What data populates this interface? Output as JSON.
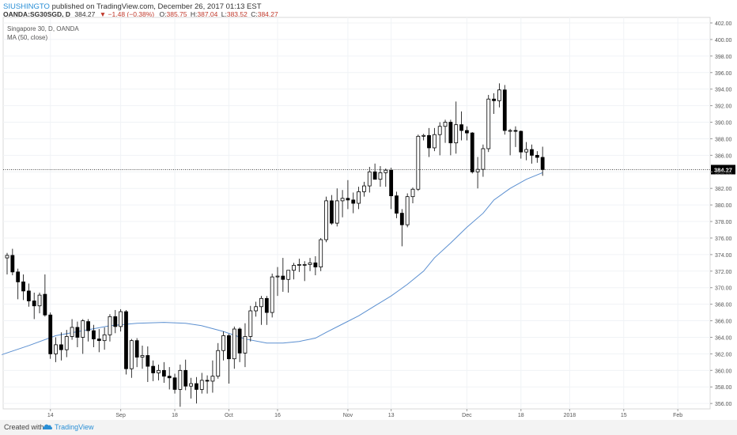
{
  "header": {
    "author": "SIUSHINGTO",
    "published_text": "published on TradingView.com, December 26, 2017 01:13 EST",
    "symbol": "OANDA:SG30SGD, D",
    "last": "384.27",
    "change": "▼ −1.48 (−0.38%)",
    "o_label": "O:",
    "o_value": "385.75",
    "h_label": "H:",
    "h_value": "387.04",
    "l_label": "L:",
    "l_value": "383.52",
    "c_label": "C:",
    "c_value": "384.27"
  },
  "legend": {
    "title": "Singapore 30, D, OANDA",
    "indicator": "MA (50, close)"
  },
  "footer": {
    "created_with": "Created with",
    "brand": "TradingView"
  },
  "colors": {
    "ma_line": "#5b8fd0",
    "price_line": "#333333",
    "candle_up_fill": "#ffffff",
    "candle_down_fill": "#000000",
    "candle_stroke": "#000000",
    "grid": "#f0f3f6",
    "price_label_bg": "#000000"
  },
  "chart_data": {
    "type": "candlestick",
    "ylim": [
      355,
      403
    ],
    "y_ticks": [
      356.0,
      358.0,
      360.0,
      362.0,
      364.0,
      366.0,
      368.0,
      370.0,
      372.0,
      374.0,
      376.0,
      378.0,
      380.0,
      382.0,
      384.0,
      386.0,
      388.0,
      390.0,
      392.0,
      394.0,
      396.0,
      398.0,
      400.0,
      402.0
    ],
    "x_ticks": [
      {
        "label": "14",
        "index": 8
      },
      {
        "label": "Sep",
        "index": 21
      },
      {
        "label": "18",
        "index": 31
      },
      {
        "label": "Oct",
        "index": 41
      },
      {
        "label": "16",
        "index": 50
      },
      {
        "label": "Nov",
        "index": 63
      },
      {
        "label": "13",
        "index": 71
      },
      {
        "label": "Dec",
        "index": 85
      },
      {
        "label": "18",
        "index": 95
      },
      {
        "label": "2018",
        "index": 104
      },
      {
        "label": "15",
        "index": 114
      },
      {
        "label": "Feb",
        "index": 124
      }
    ],
    "last_price": 384.27,
    "last_price_label": "384.27",
    "candles": [
      {
        "o": 373.6,
        "h": 374.2,
        "l": 371.6,
        "c": 373.9
      },
      {
        "o": 373.9,
        "h": 374.7,
        "l": 371.5,
        "c": 371.9
      },
      {
        "o": 371.9,
        "h": 372.3,
        "l": 368.6,
        "c": 370.7
      },
      {
        "o": 370.7,
        "h": 371.6,
        "l": 368.5,
        "c": 369.6
      },
      {
        "o": 369.6,
        "h": 370.5,
        "l": 367.7,
        "c": 368.4
      },
      {
        "o": 368.4,
        "h": 369.4,
        "l": 366.2,
        "c": 367.8
      },
      {
        "o": 367.8,
        "h": 369.4,
        "l": 366.9,
        "c": 369.1
      },
      {
        "o": 369.2,
        "h": 371.6,
        "l": 366.5,
        "c": 366.7
      },
      {
        "o": 366.7,
        "h": 367.0,
        "l": 361.4,
        "c": 362.0
      },
      {
        "o": 362.0,
        "h": 364.0,
        "l": 361.0,
        "c": 363.1
      },
      {
        "o": 363.1,
        "h": 364.6,
        "l": 361.2,
        "c": 362.5
      },
      {
        "o": 362.5,
        "h": 364.9,
        "l": 361.6,
        "c": 364.1
      },
      {
        "o": 364.1,
        "h": 366.2,
        "l": 363.7,
        "c": 365.2
      },
      {
        "o": 365.2,
        "h": 365.9,
        "l": 362.8,
        "c": 364.0
      },
      {
        "o": 364.0,
        "h": 366.2,
        "l": 362.0,
        "c": 366.0
      },
      {
        "o": 365.9,
        "h": 366.2,
        "l": 363.5,
        "c": 364.8
      },
      {
        "o": 364.8,
        "h": 365.5,
        "l": 362.8,
        "c": 363.8
      },
      {
        "o": 363.8,
        "h": 365.0,
        "l": 362.2,
        "c": 363.6
      },
      {
        "o": 363.6,
        "h": 365.2,
        "l": 362.5,
        "c": 364.3
      },
      {
        "o": 364.3,
        "h": 366.8,
        "l": 363.5,
        "c": 366.5
      },
      {
        "o": 366.5,
        "h": 367.3,
        "l": 364.5,
        "c": 365.3
      },
      {
        "o": 365.3,
        "h": 367.4,
        "l": 364.7,
        "c": 367.1
      },
      {
        "o": 367.1,
        "h": 367.3,
        "l": 359.5,
        "c": 360.2
      },
      {
        "o": 360.2,
        "h": 363.8,
        "l": 359.1,
        "c": 363.6
      },
      {
        "o": 363.6,
        "h": 363.9,
        "l": 360.4,
        "c": 361.6
      },
      {
        "o": 361.6,
        "h": 363.0,
        "l": 360.2,
        "c": 361.8
      },
      {
        "o": 361.8,
        "h": 362.9,
        "l": 358.6,
        "c": 360.5
      },
      {
        "o": 360.5,
        "h": 361.2,
        "l": 358.7,
        "c": 359.7
      },
      {
        "o": 359.7,
        "h": 360.7,
        "l": 358.8,
        "c": 360.0
      },
      {
        "o": 360.0,
        "h": 361.0,
        "l": 358.5,
        "c": 359.3
      },
      {
        "o": 359.3,
        "h": 360.4,
        "l": 357.7,
        "c": 359.1
      },
      {
        "o": 359.1,
        "h": 359.6,
        "l": 357.2,
        "c": 357.7
      },
      {
        "o": 357.7,
        "h": 360.7,
        "l": 355.6,
        "c": 360.0
      },
      {
        "o": 360.0,
        "h": 361.3,
        "l": 357.6,
        "c": 358.1
      },
      {
        "o": 358.1,
        "h": 359.1,
        "l": 356.6,
        "c": 358.4
      },
      {
        "o": 358.4,
        "h": 359.2,
        "l": 356.0,
        "c": 357.7
      },
      {
        "o": 357.7,
        "h": 359.7,
        "l": 357.2,
        "c": 358.8
      },
      {
        "o": 358.8,
        "h": 359.4,
        "l": 357.2,
        "c": 358.7
      },
      {
        "o": 358.7,
        "h": 361.2,
        "l": 357.3,
        "c": 359.3
      },
      {
        "o": 359.3,
        "h": 363.3,
        "l": 359.0,
        "c": 362.4
      },
      {
        "o": 362.4,
        "h": 364.7,
        "l": 361.2,
        "c": 364.2
      },
      {
        "o": 364.2,
        "h": 364.4,
        "l": 358.4,
        "c": 361.4
      },
      {
        "o": 361.4,
        "h": 365.3,
        "l": 360.2,
        "c": 365.0
      },
      {
        "o": 365.0,
        "h": 365.2,
        "l": 361.0,
        "c": 362.1
      },
      {
        "o": 362.1,
        "h": 365.7,
        "l": 360.4,
        "c": 364.1
      },
      {
        "o": 364.1,
        "h": 367.8,
        "l": 363.5,
        "c": 367.2
      },
      {
        "o": 367.2,
        "h": 368.3,
        "l": 366.5,
        "c": 367.7
      },
      {
        "o": 367.7,
        "h": 369.0,
        "l": 365.5,
        "c": 368.7
      },
      {
        "o": 368.7,
        "h": 369.0,
        "l": 365.5,
        "c": 367.0
      },
      {
        "o": 367.0,
        "h": 371.7,
        "l": 366.4,
        "c": 371.3
      },
      {
        "o": 371.3,
        "h": 372.5,
        "l": 369.0,
        "c": 371.4
      },
      {
        "o": 371.4,
        "h": 373.6,
        "l": 369.5,
        "c": 371.0
      },
      {
        "o": 371.0,
        "h": 372.0,
        "l": 369.4,
        "c": 372.1
      },
      {
        "o": 372.1,
        "h": 373.0,
        "l": 371.0,
        "c": 372.7
      },
      {
        "o": 372.7,
        "h": 373.5,
        "l": 371.9,
        "c": 372.8
      },
      {
        "o": 372.8,
        "h": 373.2,
        "l": 370.8,
        "c": 372.8
      },
      {
        "o": 372.8,
        "h": 373.6,
        "l": 372.0,
        "c": 373.0
      },
      {
        "o": 373.0,
        "h": 373.8,
        "l": 371.5,
        "c": 372.5
      },
      {
        "o": 372.5,
        "h": 376.0,
        "l": 372.0,
        "c": 375.8
      },
      {
        "o": 375.8,
        "h": 381.0,
        "l": 375.5,
        "c": 380.5
      },
      {
        "o": 380.5,
        "h": 381.2,
        "l": 377.6,
        "c": 377.8
      },
      {
        "o": 377.8,
        "h": 382.0,
        "l": 377.4,
        "c": 380.5
      },
      {
        "o": 380.5,
        "h": 381.8,
        "l": 378.5,
        "c": 380.8
      },
      {
        "o": 380.8,
        "h": 383.0,
        "l": 379.5,
        "c": 380.6
      },
      {
        "o": 380.6,
        "h": 381.5,
        "l": 379.0,
        "c": 380.2
      },
      {
        "o": 380.2,
        "h": 382.2,
        "l": 379.5,
        "c": 381.6
      },
      {
        "o": 381.6,
        "h": 382.8,
        "l": 381.0,
        "c": 382.3
      },
      {
        "o": 382.3,
        "h": 384.6,
        "l": 381.5,
        "c": 384.0
      },
      {
        "o": 384.0,
        "h": 385.0,
        "l": 383.3,
        "c": 383.1
      },
      {
        "o": 383.1,
        "h": 384.7,
        "l": 382.2,
        "c": 383.9
      },
      {
        "o": 383.9,
        "h": 384.4,
        "l": 382.2,
        "c": 384.2
      },
      {
        "o": 384.2,
        "h": 384.5,
        "l": 379.5,
        "c": 381.1
      },
      {
        "o": 381.1,
        "h": 381.6,
        "l": 378.4,
        "c": 379.0
      },
      {
        "o": 379.0,
        "h": 379.5,
        "l": 375.0,
        "c": 377.6
      },
      {
        "o": 377.6,
        "h": 381.4,
        "l": 377.3,
        "c": 381.0
      },
      {
        "o": 381.0,
        "h": 382.1,
        "l": 380.2,
        "c": 381.9
      },
      {
        "o": 381.9,
        "h": 388.5,
        "l": 381.7,
        "c": 388.3
      },
      {
        "o": 388.3,
        "h": 388.6,
        "l": 387.8,
        "c": 388.4
      },
      {
        "o": 388.4,
        "h": 389.3,
        "l": 385.8,
        "c": 386.9
      },
      {
        "o": 386.9,
        "h": 389.3,
        "l": 386.5,
        "c": 388.5
      },
      {
        "o": 388.5,
        "h": 390.0,
        "l": 386.0,
        "c": 389.5
      },
      {
        "o": 389.5,
        "h": 390.3,
        "l": 387.5,
        "c": 390.0
      },
      {
        "o": 390.0,
        "h": 390.3,
        "l": 386.0,
        "c": 387.5
      },
      {
        "o": 387.5,
        "h": 392.5,
        "l": 386.2,
        "c": 389.7
      },
      {
        "o": 389.7,
        "h": 391.3,
        "l": 387.8,
        "c": 389.0
      },
      {
        "o": 389.0,
        "h": 389.5,
        "l": 387.8,
        "c": 388.7
      },
      {
        "o": 388.7,
        "h": 388.8,
        "l": 383.8,
        "c": 384.0
      },
      {
        "o": 384.0,
        "h": 385.8,
        "l": 382.0,
        "c": 384.3
      },
      {
        "o": 384.3,
        "h": 387.3,
        "l": 383.4,
        "c": 386.8
      },
      {
        "o": 386.8,
        "h": 393.3,
        "l": 386.4,
        "c": 392.8
      },
      {
        "o": 392.8,
        "h": 393.5,
        "l": 391.0,
        "c": 392.6
      },
      {
        "o": 392.6,
        "h": 394.7,
        "l": 391.8,
        "c": 393.9
      },
      {
        "o": 393.9,
        "h": 394.5,
        "l": 388.5,
        "c": 389.0
      },
      {
        "o": 389.0,
        "h": 389.2,
        "l": 386.0,
        "c": 389.0
      },
      {
        "o": 389.0,
        "h": 389.5,
        "l": 387.0,
        "c": 388.9
      },
      {
        "o": 388.9,
        "h": 389.0,
        "l": 385.6,
        "c": 386.4
      },
      {
        "o": 386.4,
        "h": 387.6,
        "l": 385.4,
        "c": 386.7
      },
      {
        "o": 386.7,
        "h": 387.3,
        "l": 385.0,
        "c": 386.0
      },
      {
        "o": 386.0,
        "h": 386.5,
        "l": 385.1,
        "c": 385.75
      },
      {
        "o": 385.75,
        "h": 387.04,
        "l": 383.52,
        "c": 384.27
      }
    ],
    "ma_50": [
      {
        "i": -1,
        "v": 361.9
      },
      {
        "i": 4,
        "v": 363.0
      },
      {
        "i": 9,
        "v": 364.2
      },
      {
        "i": 14,
        "v": 364.8
      },
      {
        "i": 19,
        "v": 365.4
      },
      {
        "i": 24,
        "v": 365.7
      },
      {
        "i": 29,
        "v": 365.8
      },
      {
        "i": 33,
        "v": 365.7
      },
      {
        "i": 36,
        "v": 365.4
      },
      {
        "i": 40,
        "v": 364.7
      },
      {
        "i": 44,
        "v": 363.8
      },
      {
        "i": 48,
        "v": 363.3
      },
      {
        "i": 51,
        "v": 363.3
      },
      {
        "i": 54,
        "v": 363.5
      },
      {
        "i": 57,
        "v": 363.9
      },
      {
        "i": 59,
        "v": 364.6
      },
      {
        "i": 62,
        "v": 365.6
      },
      {
        "i": 65,
        "v": 366.6
      },
      {
        "i": 68,
        "v": 367.8
      },
      {
        "i": 71,
        "v": 369.0
      },
      {
        "i": 74,
        "v": 370.4
      },
      {
        "i": 77,
        "v": 372.0
      },
      {
        "i": 79,
        "v": 373.6
      },
      {
        "i": 82,
        "v": 375.4
      },
      {
        "i": 85,
        "v": 377.3
      },
      {
        "i": 88,
        "v": 379.0
      },
      {
        "i": 90,
        "v": 380.6
      },
      {
        "i": 93,
        "v": 382.0
      },
      {
        "i": 96,
        "v": 383.1
      },
      {
        "i": 99,
        "v": 383.9
      }
    ]
  }
}
